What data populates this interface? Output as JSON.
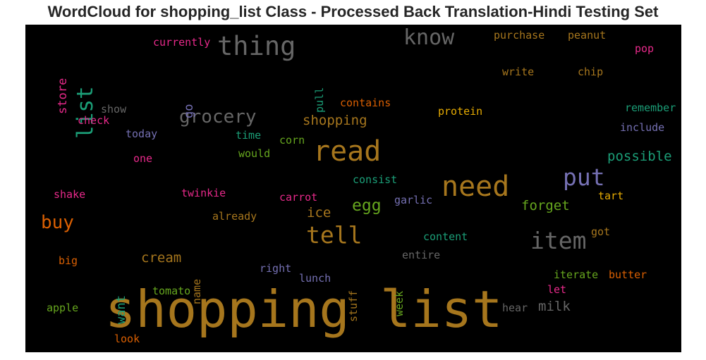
{
  "title": "WordCloud for shopping_list Class - Processed Back Translation-Hindi Testing Set",
  "chart_data": {
    "type": "wordcloud",
    "background": "#000000",
    "words": [
      {
        "text": "shopping list",
        "color": "#a6761d",
        "orientation": "horizontal"
      },
      {
        "text": "need",
        "color": "#a6761d",
        "orientation": "horizontal"
      },
      {
        "text": "read",
        "color": "#a6761d",
        "orientation": "horizontal"
      },
      {
        "text": "item",
        "color": "#666666",
        "orientation": "horizontal"
      },
      {
        "text": "thing",
        "color": "#666666",
        "orientation": "horizontal"
      },
      {
        "text": "tell",
        "color": "#a6761d",
        "orientation": "horizontal"
      },
      {
        "text": "put",
        "color": "#7570b3",
        "orientation": "horizontal"
      },
      {
        "text": "list",
        "color": "#1b9e77",
        "orientation": "vertical"
      },
      {
        "text": "know",
        "color": "#666666",
        "orientation": "horizontal"
      },
      {
        "text": "grocery",
        "color": "#666666",
        "orientation": "horizontal"
      },
      {
        "text": "buy",
        "color": "#d95f02",
        "orientation": "horizontal"
      },
      {
        "text": "egg",
        "color": "#66a61e",
        "orientation": "horizontal"
      },
      {
        "text": "forget",
        "color": "#66a61e",
        "orientation": "horizontal"
      },
      {
        "text": "possible",
        "color": "#1b9e77",
        "orientation": "horizontal"
      },
      {
        "text": "shopping",
        "color": "#a6761d",
        "orientation": "horizontal"
      },
      {
        "text": "cream",
        "color": "#a6761d",
        "orientation": "horizontal"
      },
      {
        "text": "milk",
        "color": "#666666",
        "orientation": "horizontal"
      },
      {
        "text": "ice",
        "color": "#a6761d",
        "orientation": "horizontal"
      },
      {
        "text": "store",
        "color": "#e7298a",
        "orientation": "vertical"
      },
      {
        "text": "want",
        "color": "#1b9e77",
        "orientation": "vertical"
      },
      {
        "text": "go",
        "color": "#7570b3",
        "orientation": "vertical"
      },
      {
        "text": "currently",
        "color": "#e7298a",
        "orientation": "horizontal"
      },
      {
        "text": "purchase",
        "color": "#a6761d",
        "orientation": "horizontal"
      },
      {
        "text": "peanut",
        "color": "#a6761d",
        "orientation": "horizontal"
      },
      {
        "text": "pop",
        "color": "#e7298a",
        "orientation": "horizontal"
      },
      {
        "text": "pull",
        "color": "#1b9e77",
        "orientation": "vertical"
      },
      {
        "text": "write",
        "color": "#a6761d",
        "orientation": "horizontal"
      },
      {
        "text": "chip",
        "color": "#a6761d",
        "orientation": "horizontal"
      },
      {
        "text": "contains",
        "color": "#d95f02",
        "orientation": "horizontal"
      },
      {
        "text": "show",
        "color": "#666666",
        "orientation": "horizontal"
      },
      {
        "text": "protein",
        "color": "#e6ab02",
        "orientation": "horizontal"
      },
      {
        "text": "remember",
        "color": "#1b9e77",
        "orientation": "horizontal"
      },
      {
        "text": "check",
        "color": "#e7298a",
        "orientation": "horizontal"
      },
      {
        "text": "include",
        "color": "#7570b3",
        "orientation": "horizontal"
      },
      {
        "text": "today",
        "color": "#7570b3",
        "orientation": "horizontal"
      },
      {
        "text": "time",
        "color": "#1b9e77",
        "orientation": "horizontal"
      },
      {
        "text": "corn",
        "color": "#66a61e",
        "orientation": "horizontal"
      },
      {
        "text": "would",
        "color": "#66a61e",
        "orientation": "horizontal"
      },
      {
        "text": "one",
        "color": "#e7298a",
        "orientation": "horizontal"
      },
      {
        "text": "consist",
        "color": "#1b9e77",
        "orientation": "horizontal"
      },
      {
        "text": "shake",
        "color": "#e7298a",
        "orientation": "horizontal"
      },
      {
        "text": "twinkie",
        "color": "#e7298a",
        "orientation": "horizontal"
      },
      {
        "text": "carrot",
        "color": "#e7298a",
        "orientation": "horizontal"
      },
      {
        "text": "tart",
        "color": "#e6ab02",
        "orientation": "horizontal"
      },
      {
        "text": "garlic",
        "color": "#7570b3",
        "orientation": "horizontal"
      },
      {
        "text": "already",
        "color": "#a6761d",
        "orientation": "horizontal"
      },
      {
        "text": "got",
        "color": "#a6761d",
        "orientation": "horizontal"
      },
      {
        "text": "content",
        "color": "#1b9e77",
        "orientation": "horizontal"
      },
      {
        "text": "big",
        "color": "#d95f02",
        "orientation": "horizontal"
      },
      {
        "text": "name",
        "color": "#a6761d",
        "orientation": "vertical"
      },
      {
        "text": "entire",
        "color": "#666666",
        "orientation": "horizontal"
      },
      {
        "text": "right",
        "color": "#7570b3",
        "orientation": "horizontal"
      },
      {
        "text": "stuff",
        "color": "#a6761d",
        "orientation": "vertical"
      },
      {
        "text": "lunch",
        "color": "#7570b3",
        "orientation": "horizontal"
      },
      {
        "text": "week",
        "color": "#66a61e",
        "orientation": "vertical"
      },
      {
        "text": "iterate",
        "color": "#66a61e",
        "orientation": "horizontal"
      },
      {
        "text": "butter",
        "color": "#d95f02",
        "orientation": "horizontal"
      },
      {
        "text": "tomato",
        "color": "#66a61e",
        "orientation": "horizontal"
      },
      {
        "text": "let",
        "color": "#e7298a",
        "orientation": "horizontal"
      },
      {
        "text": "apple",
        "color": "#66a61e",
        "orientation": "horizontal"
      },
      {
        "text": "hear",
        "color": "#666666",
        "orientation": "horizontal"
      },
      {
        "text": "look",
        "color": "#d95f02",
        "orientation": "horizontal"
      }
    ]
  }
}
